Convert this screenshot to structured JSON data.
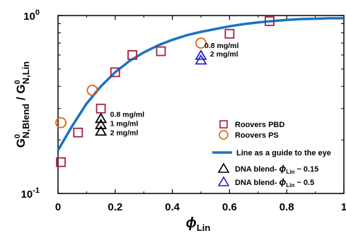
{
  "chart_data": {
    "type": "scatter",
    "title": "",
    "xlabel": {
      "main": "ϕ",
      "sub": "Lin"
    },
    "ylabel": {
      "main": "G",
      "sup1": "0",
      "sub1": "N,Blend",
      "slash": "/ G",
      "sup2": "0",
      "sub2": "N,Lin"
    },
    "xlim": [
      0,
      1
    ],
    "ylim": [
      0.1,
      1
    ],
    "yscale": "log",
    "x_ticks": [
      0,
      0.2,
      0.4,
      0.6,
      0.8,
      1
    ],
    "x_tick_labels": [
      "0",
      "0.2",
      "0.4",
      "0.6",
      "0.8",
      "1"
    ],
    "y_ticks": [
      0.1,
      1
    ],
    "y_tick_labels": [
      {
        "base": "10",
        "exp": "-1"
      },
      {
        "base": "10",
        "exp": "0"
      }
    ],
    "grid": false,
    "legend_position": "bottom-right",
    "series": [
      {
        "name": "Roovers PBD",
        "marker": "square",
        "color": "#a3223a",
        "points": [
          {
            "x": 0.01,
            "y": 0.15
          },
          {
            "x": 0.07,
            "y": 0.22
          },
          {
            "x": 0.15,
            "y": 0.3
          },
          {
            "x": 0.2,
            "y": 0.48
          },
          {
            "x": 0.26,
            "y": 0.6
          },
          {
            "x": 0.36,
            "y": 0.63
          },
          {
            "x": 0.6,
            "y": 0.79
          },
          {
            "x": 0.74,
            "y": 0.93
          }
        ]
      },
      {
        "name": "Roovers PS",
        "marker": "circle",
        "color": "#e06010",
        "points": [
          {
            "x": 0.01,
            "y": 0.25
          },
          {
            "x": 0.12,
            "y": 0.38
          },
          {
            "x": 0.5,
            "y": 0.7
          }
        ]
      },
      {
        "name": "Line as a guide to the eye",
        "marker": "line",
        "color": "#1a73c2",
        "points": [
          {
            "x": 0.0,
            "y": 0.175
          },
          {
            "x": 0.05,
            "y": 0.24
          },
          {
            "x": 0.1,
            "y": 0.32
          },
          {
            "x": 0.15,
            "y": 0.4
          },
          {
            "x": 0.2,
            "y": 0.48
          },
          {
            "x": 0.25,
            "y": 0.555
          },
          {
            "x": 0.3,
            "y": 0.62
          },
          {
            "x": 0.35,
            "y": 0.68
          },
          {
            "x": 0.4,
            "y": 0.73
          },
          {
            "x": 0.45,
            "y": 0.775
          },
          {
            "x": 0.5,
            "y": 0.81
          },
          {
            "x": 0.55,
            "y": 0.84
          },
          {
            "x": 0.6,
            "y": 0.87
          },
          {
            "x": 0.65,
            "y": 0.895
          },
          {
            "x": 0.7,
            "y": 0.915
          },
          {
            "x": 0.75,
            "y": 0.93
          },
          {
            "x": 0.8,
            "y": 0.945
          },
          {
            "x": 0.85,
            "y": 0.955
          },
          {
            "x": 0.9,
            "y": 0.96
          },
          {
            "x": 0.95,
            "y": 0.965
          },
          {
            "x": 1.0,
            "y": 0.965
          }
        ]
      },
      {
        "name": "DNA blend- ϕ Lin ~ 0.15",
        "legend_prefix": "DNA blend-",
        "legend_phi": "ϕ",
        "legend_sub": "Lin",
        "legend_suffix": "~ 0.15",
        "marker": "triangle",
        "color": "#000000",
        "points": [
          {
            "x": 0.15,
            "y": 0.265,
            "label": "0.8 mg/ml"
          },
          {
            "x": 0.15,
            "y": 0.245,
            "label": "1 mg/ml"
          },
          {
            "x": 0.15,
            "y": 0.225,
            "label": "2 mg/ml"
          }
        ]
      },
      {
        "name": "DNA blend- ϕ Lin ~ 0.5",
        "legend_prefix": "DNA blend-",
        "legend_phi": "ϕ",
        "legend_sub": "Lin",
        "legend_suffix": "~ 0.5",
        "marker": "triangle",
        "color": "#2222cc",
        "points": [
          {
            "x": 0.5,
            "y": 0.6,
            "label": "0.8 mg/ml"
          },
          {
            "x": 0.5,
            "y": 0.565,
            "label": "2 mg/ml"
          }
        ]
      }
    ],
    "annotations": {
      "group_low": [
        "0.8 mg/ml",
        "1 mg/ml",
        "2 mg/ml"
      ],
      "group_high": [
        "0.8 mg/ml",
        "2 mg/ml"
      ]
    }
  }
}
